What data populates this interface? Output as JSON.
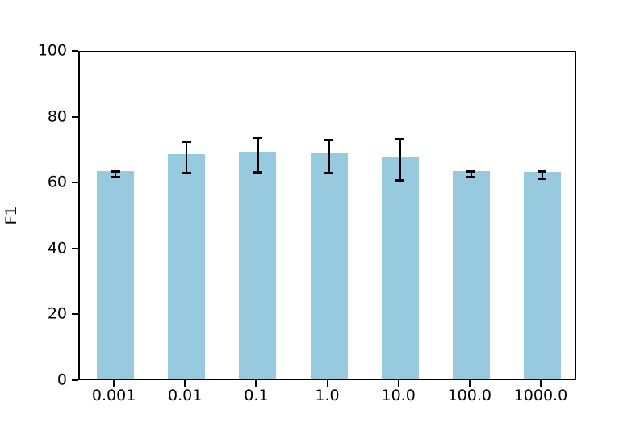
{
  "chart_data": {
    "type": "bar",
    "title": "",
    "xlabel": "",
    "ylabel": "F1",
    "categories": [
      "0.001",
      "0.01",
      "0.1",
      "1.0",
      "10.0",
      "100.0",
      "1000.0"
    ],
    "series": [
      {
        "name": "F1",
        "values": [
          63.0,
          68.1,
          68.8,
          68.4,
          67.4,
          63.0,
          62.7
        ],
        "errors": [
          0.9,
          4.7,
          5.2,
          5.0,
          6.2,
          0.8,
          1.1
        ]
      }
    ],
    "ylim": [
      0,
      100
    ],
    "yticks": [
      0,
      20,
      40,
      60,
      80,
      100
    ],
    "grid": false,
    "legend": null,
    "bar_color": "#97cade",
    "error_color": "#000000",
    "axis_color": "#000000",
    "background_color": "#ffffff"
  }
}
